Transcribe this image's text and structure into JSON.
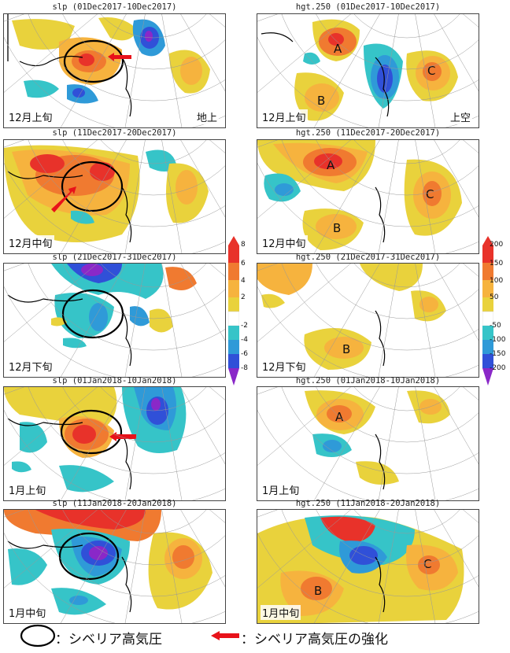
{
  "colors": {
    "pos_strong": "#e8322a",
    "pos_mid": "#f07a30",
    "pos_weak": "#f6b33e",
    "pos_faint": "#e9d23c",
    "neg_faint": "#36c4c8",
    "neg_weak": "#2f9ad8",
    "neg_mid": "#3050d8",
    "neg_strong": "#8a28c8",
    "arrow": "#e8121a"
  },
  "slp_colorbar": {
    "ticks": [
      "8",
      "6",
      "4",
      "2",
      "-2",
      "-4",
      "-6",
      "-8"
    ]
  },
  "hgt_colorbar": {
    "ticks": [
      "200",
      "150",
      "100",
      "50",
      "-50",
      "-100",
      "-150",
      "-200"
    ]
  },
  "panels": [
    {
      "title": "slp (01Dec2017-10Dec2017)",
      "label": "12月上旬",
      "extra": "地上"
    },
    {
      "title": "hgt.250 (01Dec2017-10Dec2017)",
      "label": "12月上旬",
      "extra": "上空"
    },
    {
      "title": "slp (11Dec2017-20Dec2017)",
      "label": "12月中旬"
    },
    {
      "title": "hgt.250 (11Dec2017-20Dec2017)",
      "label": "12月中旬"
    },
    {
      "title": "slp (21Dec2017-31Dec2017)",
      "label": "12月下旬"
    },
    {
      "title": "hgt.250 (21Dec2017-31Dec2017)",
      "label": "12月下旬"
    },
    {
      "title": "slp (01Jan2018-10Jan2018)",
      "label": "1月上旬"
    },
    {
      "title": "hgt.250 (01Jan2018-10Jan2018)",
      "label": "1月上旬"
    },
    {
      "title": "slp (11Jan2018-20Jan2018)",
      "label": "1月中旬"
    },
    {
      "title": "hgt.250 (11Jan2018-20Jan2018)",
      "label": "1月中旬"
    }
  ],
  "markers": {
    "A": "A",
    "B": "B",
    "C": "C"
  },
  "legend": {
    "ellipse_text": "：シベリア高気圧",
    "arrow_text": "：シベリア高気圧の強化"
  }
}
